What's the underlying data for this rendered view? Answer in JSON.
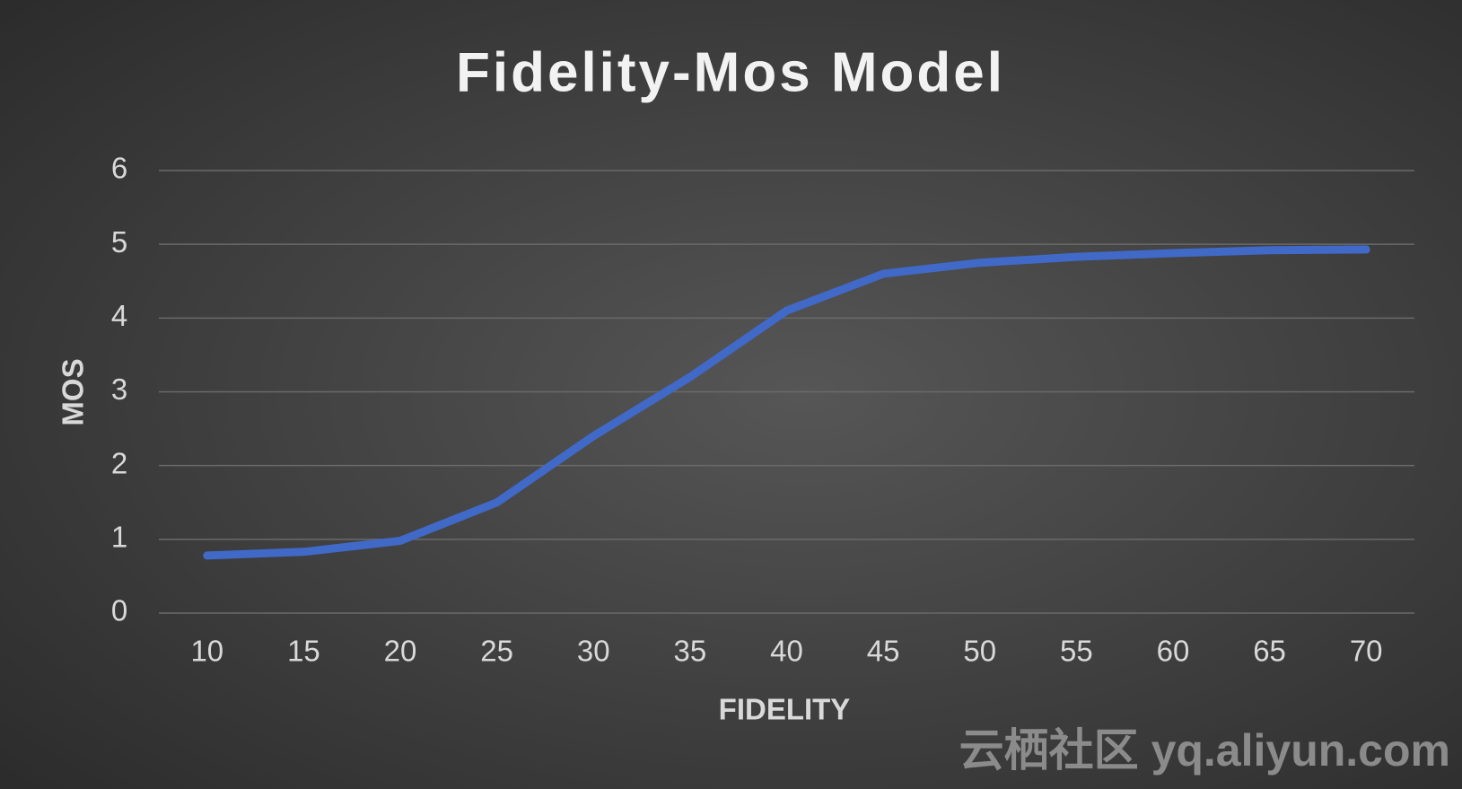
{
  "chart_data": {
    "type": "line",
    "title": "Fidelity-Mos Model",
    "x_label": "FIDELITY",
    "y_label": "MOS",
    "categories": [
      "10",
      "15",
      "20",
      "25",
      "30",
      "35",
      "40",
      "45",
      "50",
      "55",
      "60",
      "65",
      "70"
    ],
    "series": [
      {
        "name": "MOS",
        "color": "#4169c8",
        "values": [
          0.78,
          0.83,
          0.98,
          1.5,
          2.4,
          3.2,
          4.1,
          4.6,
          4.75,
          4.83,
          4.88,
          4.92,
          4.93
        ]
      }
    ],
    "ylim": [
      0,
      6
    ],
    "yticks": [
      0,
      1,
      2,
      3,
      4,
      5,
      6
    ],
    "grid": true,
    "watermark": "云栖社区 yq.aliyun.com"
  }
}
